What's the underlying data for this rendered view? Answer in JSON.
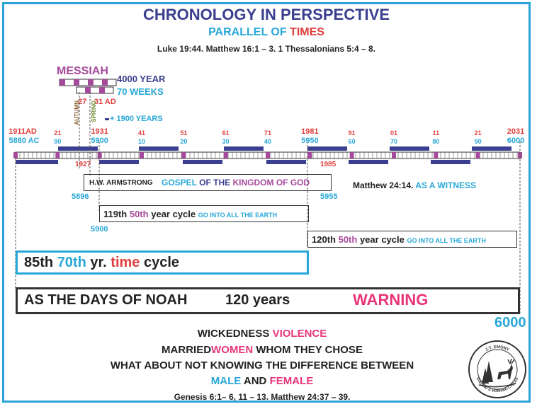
{
  "header": {
    "title": "CHRONOLOGY IN PERSPECTIVE",
    "subtitle_prefix": "PARALLEL OF",
    "subtitle_highlight": "TIMES",
    "references": "Luke 19:44. Matthew 16:1 – 3. 1 Thessalonians 5:4 – 8."
  },
  "messiah": {
    "label": "MESSIAH",
    "year_4000": "4000 YEAR",
    "weeks": "70 WEEKS",
    "year_27": "27",
    "year_31": "31 AD",
    "plus_years": "+ 1900 YEARS",
    "autumn": "AUTUMN",
    "spring": "SPRING"
  },
  "timeline": {
    "top_labels": [
      {
        "top": "1911AD",
        "bottom": "5880 AC"
      },
      {
        "top": "21",
        "bottom": "90"
      },
      {
        "top": "1931",
        "bottom": "5900"
      },
      {
        "top": "41",
        "bottom": "10"
      },
      {
        "top": "51",
        "bottom": "20"
      },
      {
        "top": "61",
        "bottom": "30"
      },
      {
        "top": "71",
        "bottom": "40"
      },
      {
        "top": "1981",
        "bottom": "5950"
      },
      {
        "top": "91",
        "bottom": "60"
      },
      {
        "top": "01",
        "bottom": "70"
      },
      {
        "top": "11",
        "bottom": "80"
      },
      {
        "top": "21",
        "bottom": "90"
      },
      {
        "top": "2031",
        "bottom": "6000"
      }
    ],
    "below_1927": "1927",
    "below_1985": "1985"
  },
  "gospel_box": {
    "name": "H.W. ARMSTRONG",
    "gospel": "GOSPEL",
    "of_the": "OF THE",
    "kingdom": "KINGDOM OF GOD",
    "start": "5896",
    "end": "5955"
  },
  "witness": {
    "ref": "Matthew 24:14.",
    "text": "AS A WITNESS"
  },
  "cycle_119": {
    "num": "119th",
    "fifty": "50th",
    "rest": "year cycle",
    "go": "GO INTO ALL THE EARTH",
    "start": "5900"
  },
  "cycle_120": {
    "num": "120th",
    "fifty": "50th",
    "rest": "year cycle",
    "go": "GO INTO ALL THE EARTH"
  },
  "cycle_85": {
    "num": "85th",
    "seventy": "70th",
    "yr": "yr.",
    "time": "time",
    "cycle": "cycle"
  },
  "noah": {
    "text": "AS THE DAYS OF NOAH",
    "years": "120 years",
    "warning": "WARNING"
  },
  "end_year": "6000",
  "bottom": {
    "wickedness": "WICKEDNESS",
    "violence": "VIOLENCE",
    "married": "MARRIED",
    "women": "WOMEN",
    "whom": "WHOM THEY CHOSE",
    "what_about": "WHAT ABOUT NOT KNOWING THE DIFFERENCE BETWEEN",
    "male": "MALE",
    "and": "AND",
    "female": "FEMALE",
    "references": "Genesis 6:1– 6, 11 – 13. Matthew 24:37 – 39."
  },
  "logo": {
    "top_text": "J.T. EMORY",
    "bottom_text": "EVENING & MORNING CYCLES"
  },
  "colors": {
    "navy": "#3a3f8f",
    "cyan": "#27a7d8",
    "red": "#e23d3d",
    "pink": "#e8357a",
    "purple": "#a54a9a",
    "frame": "#29a3d8"
  }
}
